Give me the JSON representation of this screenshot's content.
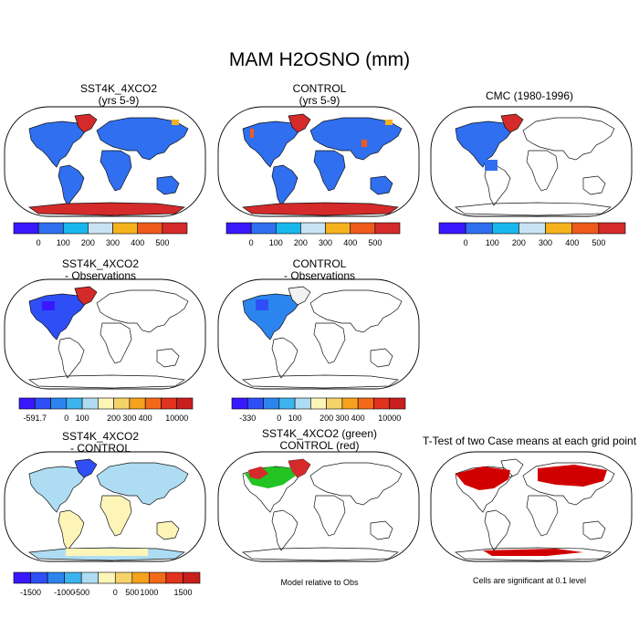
{
  "title": "MAM H2OSNO (mm)",
  "panels": {
    "p1": {
      "title1": "SST4K_4XCO2",
      "title2": "(yrs 5-9)"
    },
    "p2": {
      "title1": "CONTROL",
      "title2": "(yrs 5-9)"
    },
    "p3": {
      "title1": "CMC (1980-1996)",
      "title2": ""
    },
    "p4": {
      "title1": "SST4K_4XCO2",
      "title2": "- Observations"
    },
    "p5": {
      "title1": "CONTROL",
      "title2": "- Observations"
    },
    "p7": {
      "title1": "SST4K_4XCO2",
      "title2": "- CONTROL"
    },
    "p8": {
      "title1": "SST4K_4XCO2 (green)",
      "title2": "CONTROL (red)"
    },
    "p9": {
      "title1": "T-Test of two Case means at each grid point",
      "title2": ""
    }
  },
  "notes": {
    "p8": "Model relative to Obs",
    "p9": "Cells are significant at 0.1 level"
  },
  "colorbars": {
    "abs": {
      "colors": [
        "#3a18ff",
        "#2f6ff0",
        "#18b8ee",
        "#c8e4f4",
        "#f6b21c",
        "#ee5a1c",
        "#d52a2a"
      ],
      "labels": [
        "0",
        "100",
        "200",
        "300",
        "400",
        "500"
      ]
    },
    "diff1": {
      "colors": [
        "#3a18ff",
        "#2f4ff6",
        "#2c85ee",
        "#3cb3ee",
        "#aedcf2",
        "#fdf5b8",
        "#f6d36a",
        "#f6a21e",
        "#f26a18",
        "#e0321c",
        "#c81e1e"
      ],
      "labels": [
        "-591.7",
        "0",
        "100",
        "200",
        "300",
        "400",
        "10000"
      ]
    },
    "diff2": {
      "colors": [
        "#3a18ff",
        "#2f4ff6",
        "#2c85ee",
        "#3cb3ee",
        "#aedcf2",
        "#fdf5b8",
        "#f6d36a",
        "#f6a21e",
        "#f26a18",
        "#e0321c",
        "#c81e1e"
      ],
      "labels": [
        "-330",
        "0",
        "100",
        "200",
        "300",
        "400",
        "10000"
      ]
    },
    "diff3": {
      "colors": [
        "#3a18ff",
        "#2f4ff6",
        "#2c85ee",
        "#3cb3ee",
        "#aedcf2",
        "#fdf5b8",
        "#f6d36a",
        "#f6a21e",
        "#f26a18",
        "#e0321c",
        "#c81e1e"
      ],
      "labels": [
        "-1500",
        "-1000",
        "-500",
        "0",
        "500",
        "1000",
        "1500"
      ]
    }
  },
  "chart_data": {
    "type": "heatmap",
    "title": "MAM H2OSNO (mm)",
    "panel_count": 8,
    "colorbar_ticks_abs": [
      0,
      100,
      200,
      300,
      400,
      500
    ],
    "colorbar_ticks_diff_sst4k_obs": [
      -591.7,
      0,
      100,
      200,
      300,
      400,
      10000
    ],
    "colorbar_ticks_diff_control_obs": [
      -330,
      0,
      100,
      200,
      300,
      400,
      10000
    ],
    "colorbar_ticks_diff_sst4k_control": [
      -1500,
      -1000,
      -500,
      0,
      500,
      1000,
      1500
    ]
  }
}
